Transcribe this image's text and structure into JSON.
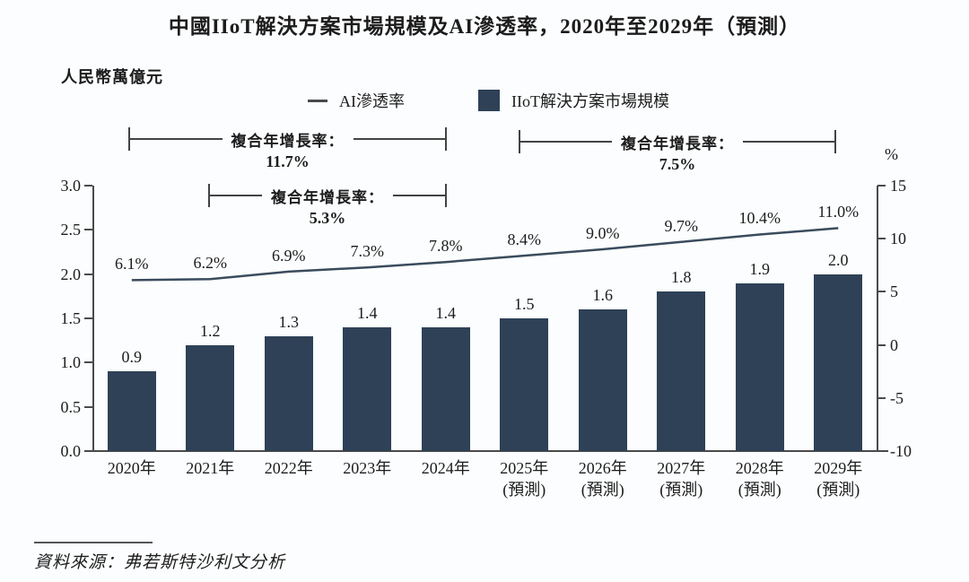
{
  "title": "中國IIoT解決方案市場規模及AI滲透率，2020年至2029年（預測）",
  "unit_label": "人民幣萬億元",
  "legend": {
    "line_label": "AI滲透率",
    "bar_label": "IIoT解決方案市場規模"
  },
  "cagr_annotations": [
    {
      "label": "複合年增長率：",
      "value": "11.7%",
      "span": "2020年-2024年"
    },
    {
      "label": "複合年增長率：",
      "value": "7.5%",
      "span": "2025年-2029年"
    },
    {
      "label": "複合年增長率：",
      "value": "5.3%",
      "span": "2021年-2024年"
    }
  ],
  "source": "資料來源：弗若斯特沙利文分析",
  "colors": {
    "bar": "#2e4156",
    "line": "#3a4b5d",
    "axis": "#4a4a4a"
  },
  "chart_data": {
    "type": "bar",
    "subtype": "combo-bar-line-dual-axis",
    "title": "中國IIoT解決方案市場規模及AI滲透率，2020年至2029年（預測）",
    "categories": [
      {
        "year": "2020年",
        "note": ""
      },
      {
        "year": "2021年",
        "note": ""
      },
      {
        "year": "2022年",
        "note": ""
      },
      {
        "year": "2023年",
        "note": ""
      },
      {
        "year": "2024年",
        "note": ""
      },
      {
        "year": "2025年",
        "note": "(預測)"
      },
      {
        "year": "2026年",
        "note": "(預測)"
      },
      {
        "year": "2027年",
        "note": "(預測)"
      },
      {
        "year": "2028年",
        "note": "(預測)"
      },
      {
        "year": "2029年",
        "note": "(預測)"
      }
    ],
    "series": [
      {
        "name": "IIoT解決方案市場規模",
        "type": "bar",
        "axis": "left",
        "unit": "人民幣萬億元",
        "values": [
          0.9,
          1.2,
          1.3,
          1.4,
          1.4,
          1.5,
          1.6,
          1.8,
          1.9,
          2.0
        ],
        "labels": [
          "0.9",
          "1.2",
          "1.3",
          "1.4",
          "1.4",
          "1.5",
          "1.6",
          "1.8",
          "1.9",
          "2.0"
        ]
      },
      {
        "name": "AI滲透率",
        "type": "line",
        "axis": "right",
        "unit": "%",
        "values": [
          6.1,
          6.2,
          6.9,
          7.3,
          7.8,
          8.4,
          9.0,
          9.7,
          10.4,
          11.0
        ],
        "labels": [
          "6.1%",
          "6.2%",
          "6.9%",
          "7.3%",
          "7.8%",
          "8.4%",
          "9.0%",
          "9.7%",
          "10.4%",
          "11.0%"
        ]
      }
    ],
    "left_axis": {
      "min": 0,
      "max": 3,
      "ticks": [
        "3.0",
        "2.5",
        "2.0",
        "1.5",
        "1.0",
        "0.5",
        "0.0"
      ]
    },
    "right_axis": {
      "min": -10,
      "max": 15,
      "unit": "%",
      "ticks": [
        "15",
        "10",
        "5",
        "0",
        "-5",
        "-10"
      ]
    },
    "grid": false,
    "legend_position": "top"
  }
}
